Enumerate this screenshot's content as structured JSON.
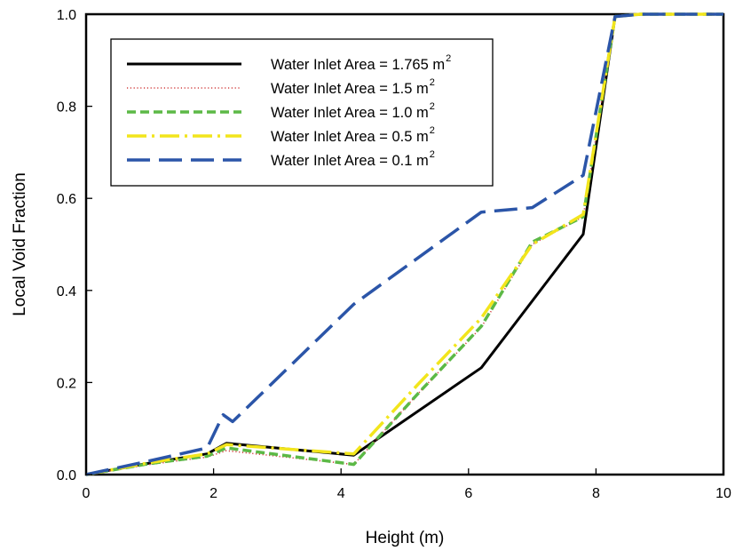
{
  "chart_data": {
    "type": "line",
    "xlabel": "Height (m)",
    "ylabel": "Local Void Fraction",
    "xlim": [
      0,
      10
    ],
    "ylim": [
      0,
      1.0
    ],
    "x_ticks": [
      "0",
      "2",
      "4",
      "6",
      "8",
      "10"
    ],
    "y_ticks": [
      "0.0",
      "0.2",
      "0.4",
      "0.6",
      "0.8",
      "1.0"
    ],
    "grid": false,
    "legend_position": "top-left",
    "series": [
      {
        "name": "Water Inlet Area = 1.765 m",
        "unit_sup": "2",
        "color": "#000000",
        "style": "solid",
        "x": [
          0,
          1.0,
          1.9,
          2.2,
          4.2,
          6.2,
          7.8,
          8.3,
          8.7,
          10
        ],
        "y": [
          0,
          0.025,
          0.045,
          0.068,
          0.042,
          0.232,
          0.522,
          0.995,
          1.0,
          1.0
        ]
      },
      {
        "name": "Water Inlet Area = 1.5    m",
        "unit_sup": "2",
        "color": "#d24040",
        "style": "dotted",
        "x": [
          0,
          1.0,
          1.9,
          2.2,
          4.2,
          5.2,
          6.2,
          7.0,
          7.8,
          8.3,
          8.7,
          10
        ],
        "y": [
          0,
          0.022,
          0.038,
          0.052,
          0.022,
          0.175,
          0.32,
          0.5,
          0.56,
          0.995,
          1.0,
          1.0
        ]
      },
      {
        "name": "Water Inlet Area = 1.0    m",
        "unit_sup": "2",
        "color": "#5cb946",
        "style": "dashed",
        "x": [
          0,
          1.0,
          1.9,
          2.2,
          4.2,
          5.2,
          6.2,
          7.0,
          7.8,
          8.3,
          8.7,
          10
        ],
        "y": [
          0,
          0.024,
          0.04,
          0.058,
          0.022,
          0.175,
          0.322,
          0.505,
          0.56,
          0.995,
          1.0,
          1.0
        ]
      },
      {
        "name": "Water Inlet Area = 0.5    m",
        "unit_sup": "2",
        "color": "#f2e51c",
        "style": "dashdot",
        "x": [
          0,
          1.0,
          1.9,
          2.2,
          4.2,
          5.2,
          6.2,
          7.0,
          7.8,
          8.3,
          8.7,
          10
        ],
        "y": [
          0,
          0.026,
          0.045,
          0.065,
          0.045,
          0.195,
          0.34,
          0.5,
          0.565,
          0.995,
          1.0,
          1.0
        ]
      },
      {
        "name": "Water Inlet Area = 0.1    m",
        "unit_sup": "2",
        "color": "#2b55a8",
        "style": "longdash",
        "x": [
          0,
          1.0,
          1.9,
          2.15,
          2.3,
          4.2,
          6.2,
          7.0,
          7.8,
          8.3,
          8.7,
          10
        ],
        "y": [
          0,
          0.03,
          0.058,
          0.13,
          0.115,
          0.37,
          0.57,
          0.58,
          0.65,
          0.995,
          1.0,
          1.0
        ]
      }
    ]
  }
}
